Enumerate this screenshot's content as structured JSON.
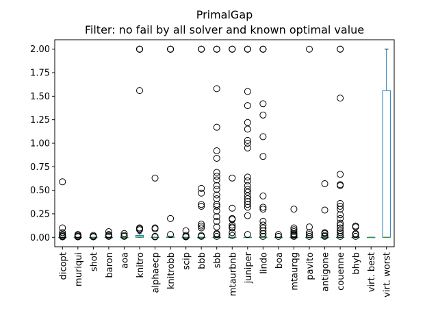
{
  "chart_data": {
    "type": "boxplot",
    "title": "PrimalGap",
    "subtitle": "Filter: no fail by all solver and known optimal value",
    "xlabel": "",
    "ylabel": "",
    "ylim": [
      -0.1,
      2.1
    ],
    "yticks": [
      0.0,
      0.25,
      0.5,
      0.75,
      1.0,
      1.25,
      1.5,
      1.75,
      2.0
    ],
    "ytick_labels": [
      "0.00",
      "0.25",
      "0.50",
      "0.75",
      "1.00",
      "1.25",
      "1.50",
      "1.75",
      "2.00"
    ],
    "grid": false,
    "categories": [
      "dicopt",
      "muriqui",
      "shot",
      "baron",
      "aoa",
      "knitro",
      "alphaecp",
      "knitrobb",
      "scip",
      "bbb",
      "sbb",
      "mtaurbnb",
      "juniper",
      "lindo",
      "boa",
      "mtaurqg",
      "pavito",
      "antigone",
      "couenne",
      "bhyb",
      "virt. best",
      "virt. worst"
    ],
    "boxes": [
      {
        "q1": 0,
        "median": 0,
        "q3": 0,
        "whislo": 0,
        "whishi": 0,
        "fliers": [
          0.59,
          0.1,
          0.05,
          0.03,
          0.02,
          0.01,
          0.005
        ]
      },
      {
        "q1": 0,
        "median": 0,
        "q3": 0,
        "whislo": 0,
        "whishi": 0,
        "fliers": [
          0.03,
          0.02,
          0.01,
          0.005
        ]
      },
      {
        "q1": 0,
        "median": 0,
        "q3": 0,
        "whislo": 0,
        "whishi": 0,
        "fliers": [
          0.02,
          0.01,
          0.005
        ]
      },
      {
        "q1": 0,
        "median": 0,
        "q3": 0,
        "whislo": 0,
        "whishi": 0,
        "fliers": [
          0.06,
          0.03,
          0.02,
          0.01
        ]
      },
      {
        "q1": 0,
        "median": 0,
        "q3": 0,
        "whislo": 0,
        "whishi": 0,
        "fliers": [
          0.04,
          0.02,
          0.01
        ]
      },
      {
        "q1": 0,
        "median": 0.005,
        "q3": 0.02,
        "whislo": 0,
        "whishi": 0.04,
        "fliers": [
          2.0,
          2.0,
          2.0,
          2.0,
          1.56,
          0.1,
          0.09,
          0.08
        ]
      },
      {
        "q1": 0,
        "median": 0,
        "q3": 0,
        "whislo": 0,
        "whishi": 0,
        "fliers": [
          0.63,
          0.1,
          0.09,
          0.01,
          0.005
        ]
      },
      {
        "q1": 0,
        "median": 0,
        "q3": 0.005,
        "whislo": 0,
        "whishi": 0.01,
        "fliers": [
          2.0,
          2.0,
          2.0,
          2.0,
          0.2,
          0.03
        ]
      },
      {
        "q1": 0,
        "median": 0,
        "q3": 0,
        "whislo": 0,
        "whishi": 0,
        "fliers": [
          0.07,
          0.02,
          0.01,
          0.005
        ]
      },
      {
        "q1": 0,
        "median": 0,
        "q3": 0,
        "whislo": 0,
        "whishi": 0,
        "fliers": [
          2.0,
          2.0,
          2.0,
          0.52,
          0.47,
          0.35,
          0.33,
          0.14,
          0.12,
          0.1,
          0.02,
          0.01
        ]
      },
      {
        "q1": 0,
        "median": 0,
        "q3": 0,
        "whislo": 0,
        "whishi": 0,
        "fliers": [
          2.0,
          2.0,
          2.0,
          1.58,
          1.17,
          0.92,
          0.84,
          0.69,
          0.65,
          0.61,
          0.55,
          0.51,
          0.45,
          0.41,
          0.35,
          0.33,
          0.28,
          0.22,
          0.17,
          0.11,
          0.04,
          0.03,
          0.01
        ]
      },
      {
        "q1": 0,
        "median": 0,
        "q3": 0,
        "whislo": 0,
        "whishi": 0,
        "fliers": [
          2.0,
          2.0,
          2.0,
          0.63,
          0.31,
          0.2,
          0.19,
          0.13,
          0.11,
          0.1,
          0.05,
          0.02
        ]
      },
      {
        "q1": 0,
        "median": 0,
        "q3": 0,
        "whislo": 0,
        "whishi": 0,
        "fliers": [
          2.0,
          2.0,
          2.0,
          1.55,
          1.4,
          1.22,
          1.15,
          1.03,
          1.0,
          0.95,
          0.64,
          0.6,
          0.55,
          0.51,
          0.48,
          0.44,
          0.41,
          0.38,
          0.35,
          0.32,
          0.23,
          0.03
        ]
      },
      {
        "q1": 0,
        "median": 0,
        "q3": 0,
        "whislo": 0,
        "whishi": 0,
        "fliers": [
          2.0,
          2.0,
          2.0,
          1.42,
          1.3,
          1.07,
          0.86,
          0.44,
          0.32,
          0.3,
          0.17,
          0.13,
          0.1,
          0.07,
          0.04,
          0.01
        ]
      },
      {
        "q1": 0,
        "median": 0,
        "q3": 0,
        "whislo": 0,
        "whishi": 0,
        "fliers": [
          0.03,
          0.01
        ]
      },
      {
        "q1": 0,
        "median": 0,
        "q3": 0,
        "whislo": 0,
        "whishi": 0,
        "fliers": [
          0.3,
          0.1,
          0.08,
          0.06,
          0.04,
          0.03,
          0.02,
          0.01
        ]
      },
      {
        "q1": 0,
        "median": 0,
        "q3": 0,
        "whislo": 0,
        "whishi": 0,
        "fliers": [
          2.0,
          0.11,
          0.05,
          0.03,
          0.01
        ]
      },
      {
        "q1": 0,
        "median": 0,
        "q3": 0,
        "whislo": 0,
        "whishi": 0,
        "fliers": [
          0.57,
          0.29,
          0.05,
          0.04,
          0.02,
          0.01
        ]
      },
      {
        "q1": 0,
        "median": 0,
        "q3": 0,
        "whislo": 0,
        "whishi": 0,
        "fliers": [
          2.0,
          2.0,
          1.48,
          0.67,
          0.56,
          0.55,
          0.36,
          0.33,
          0.3,
          0.24,
          0.2,
          0.15,
          0.13,
          0.1,
          0.07,
          0.05,
          0.03,
          0.01
        ]
      },
      {
        "q1": 0,
        "median": 0,
        "q3": 0,
        "whislo": 0,
        "whishi": 0,
        "fliers": [
          0.12,
          0.11,
          0.04,
          0.03,
          0.01
        ]
      },
      {
        "q1": 0,
        "median": 0,
        "q3": 0,
        "whislo": 0,
        "whishi": 0,
        "fliers": []
      },
      {
        "q1": 0,
        "median": 0,
        "q3": 1.56,
        "whislo": 0,
        "whishi": 2.0,
        "fliers": []
      }
    ],
    "colors": {
      "box": "#1f77b4",
      "median": "#2ca02c",
      "flier": "#000000",
      "axes": "#000000"
    }
  }
}
